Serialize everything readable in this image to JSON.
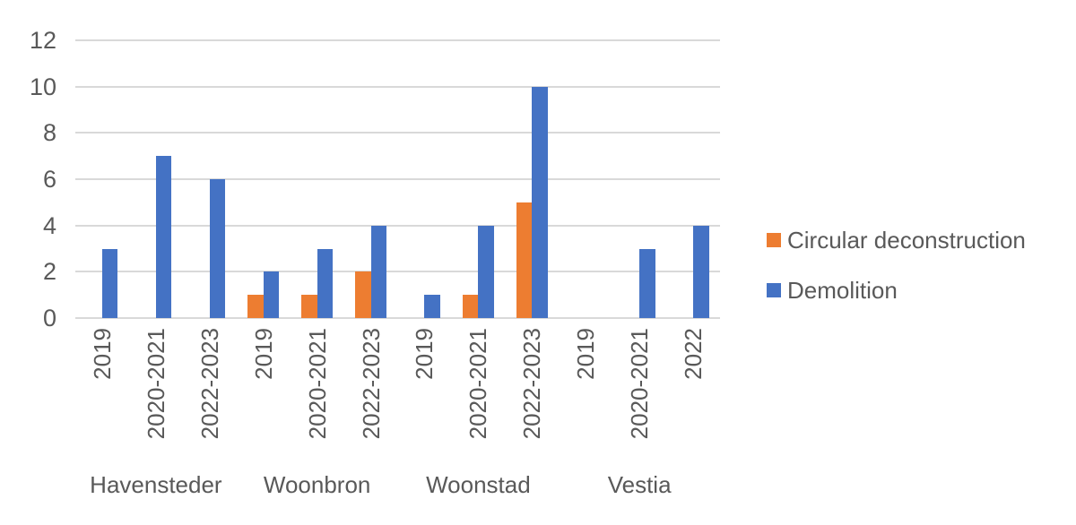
{
  "chart_data": {
    "type": "bar",
    "title": "",
    "xlabel": "",
    "ylabel": "",
    "categories": [
      "2019",
      "2020-2021",
      "2022-2023",
      "2019",
      "2020-2021",
      "2022-2023",
      "2019",
      "2020-2021",
      "2022-2023",
      "2019",
      "2020-2021",
      "2022"
    ],
    "groups": [
      {
        "name": "Havensteder",
        "span": 3
      },
      {
        "name": "Woonbron",
        "span": 3
      },
      {
        "name": "Woonstad",
        "span": 3
      },
      {
        "name": "Vestia",
        "span": 3
      }
    ],
    "series": [
      {
        "name": "Circular deconstruction",
        "color": "#ED7D31",
        "values": [
          0,
          0,
          0,
          1,
          1,
          2,
          0,
          1,
          5,
          0,
          0,
          0
        ]
      },
      {
        "name": "Demolition",
        "color": "#4472C4",
        "values": [
          3,
          7,
          6,
          2,
          3,
          4,
          1,
          4,
          10,
          0,
          3,
          4
        ]
      }
    ],
    "ylim": [
      0,
      12
    ],
    "yticks": [
      0,
      2,
      4,
      6,
      8,
      10,
      12
    ],
    "grid": true,
    "legend_position": "right",
    "colors": {
      "gridline": "#D9D9D9",
      "text": "#595959",
      "background": "#FFFFFF"
    }
  }
}
